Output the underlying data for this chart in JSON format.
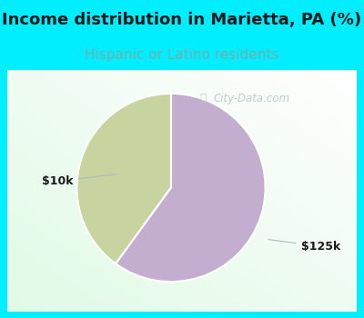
{
  "title": "Income distribution in Marietta, PA (%)",
  "subtitle": "Hispanic or Latino residents",
  "slices": [
    {
      "label": "$10k",
      "value": 40,
      "color": "#c8d4a0"
    },
    {
      "label": "$125k",
      "value": 60,
      "color": "#c4aed0"
    }
  ],
  "title_fontsize": 13,
  "subtitle_fontsize": 11,
  "title_color": "#1a1a1a",
  "subtitle_color": "#7aaba8",
  "label_fontsize": 9,
  "label_color": "#1a1a1a",
  "bg_cyan": "#00eeff",
  "bg_chart": "#e8f5ee",
  "watermark": "City-Data.com",
  "watermark_color": "#b0c4c4",
  "start_angle": 90
}
